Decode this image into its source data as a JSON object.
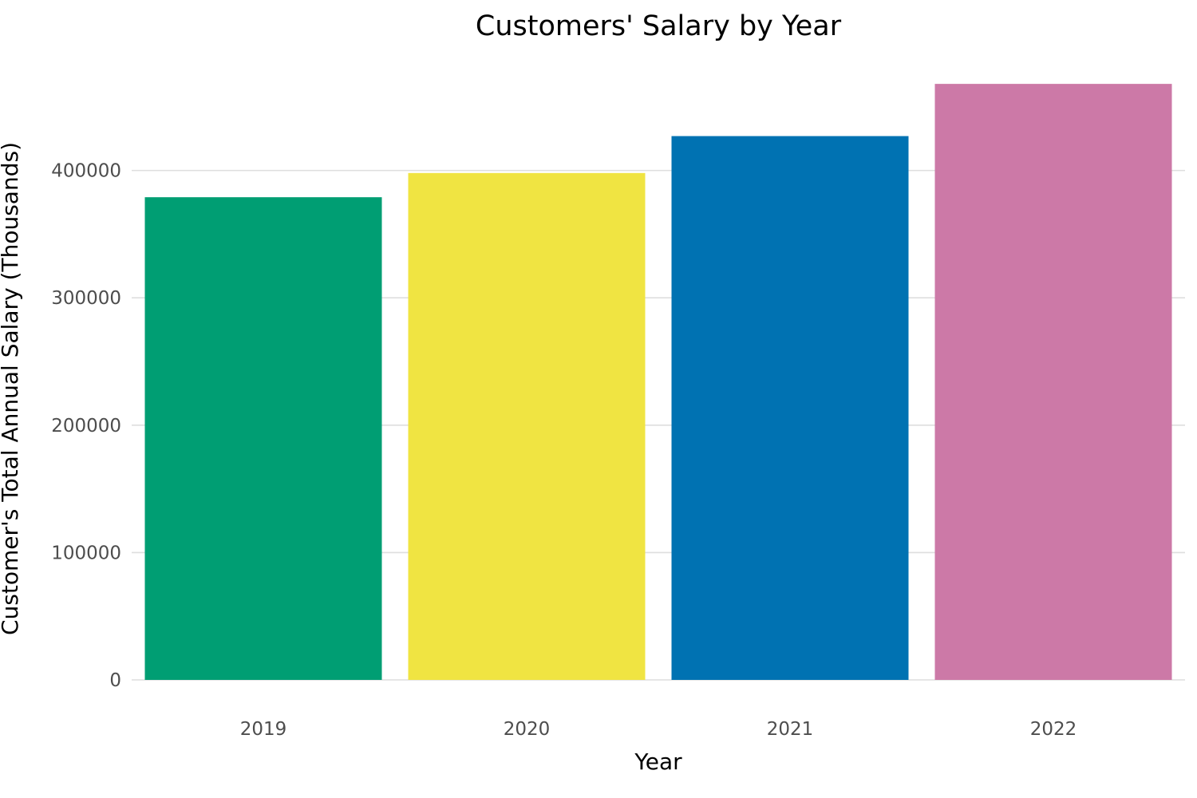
{
  "chart_data": {
    "type": "bar",
    "title": "Customers' Salary by Year",
    "xlabel": "Year",
    "ylabel": "Customer's Total Annual Salary (Thousands)",
    "categories": [
      "2019",
      "2020",
      "2021",
      "2022"
    ],
    "values": [
      379000,
      398000,
      427000,
      468000
    ],
    "colors": [
      "#009e73",
      "#f0e442",
      "#0072b2",
      "#cc79a7"
    ],
    "yticks": [
      0,
      100000,
      200000,
      300000,
      400000
    ],
    "ytick_labels": [
      "0",
      "100000",
      "200000",
      "300000",
      "400000"
    ],
    "ylim": [
      0,
      490000
    ],
    "grid": true,
    "legend": "none"
  }
}
